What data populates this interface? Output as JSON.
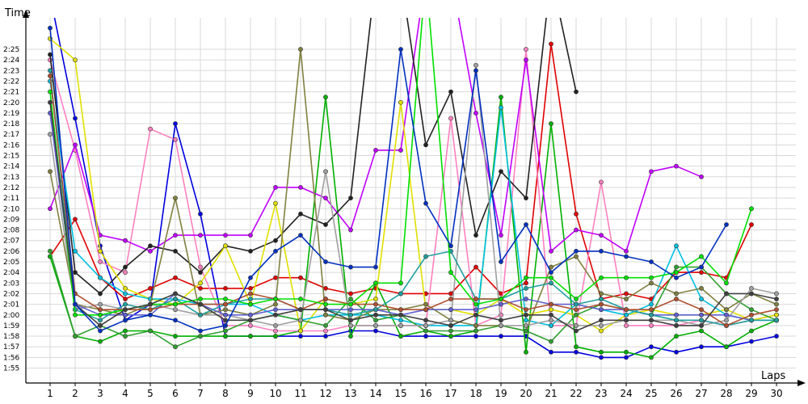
{
  "chart_data": {
    "type": "line",
    "title": "",
    "xlabel": "Laps",
    "ylabel": "Time",
    "xlim": [
      1,
      30
    ],
    "ylim": [
      114,
      146.5
    ],
    "grid": "horizontal and vertical",
    "yticks": [
      "1:55",
      "1:56",
      "1:57",
      "1:58",
      "1:59",
      "2:00",
      "2:01",
      "2:02",
      "2:03",
      "2:04",
      "2:05",
      "2:06",
      "2:07",
      "2:08",
      "2:09",
      "2:10",
      "2:11",
      "2:12",
      "2:13",
      "2:14",
      "2:15",
      "2:16",
      "2:17",
      "2:18",
      "2:19",
      "2:20",
      "2:21",
      "2:22",
      "2:23",
      "2:24",
      "2:25"
    ],
    "yticks_seconds": [
      115,
      116,
      117,
      118,
      119,
      120,
      121,
      122,
      123,
      124,
      125,
      126,
      127,
      128,
      129,
      130,
      131,
      132,
      133,
      134,
      135,
      136,
      137,
      138,
      139,
      140,
      141,
      142,
      143,
      144,
      145
    ],
    "xticks": [
      "1",
      "2",
      "3",
      "4",
      "5",
      "6",
      "7",
      "8",
      "9",
      "10",
      "11",
      "12",
      "13",
      "14",
      "15",
      "16",
      "17",
      "18",
      "19",
      "20",
      "21",
      "22",
      "23",
      "24",
      "25",
      "26",
      "27",
      "28",
      "29",
      "30"
    ],
    "series": [
      {
        "color": "#0000e0",
        "values": [
          150,
          138.5,
          126.5,
          119.5,
          121,
          138,
          129.5,
          118,
          118,
          118,
          118,
          118,
          118.5,
          118.5,
          118,
          118,
          118,
          118,
          118,
          118,
          116.5,
          116.5,
          116,
          116,
          117,
          116.5,
          117,
          117,
          117.5,
          118
        ]
      },
      {
        "color": "#e00000",
        "values": [
          125.5,
          129,
          123.5,
          121.5,
          122.5,
          123.5,
          122.5,
          122.5,
          122.5,
          123.5,
          123.5,
          122.5,
          122,
          122.5,
          122,
          122,
          122,
          124.5,
          122,
          123,
          145.5,
          129.5,
          121.5,
          122,
          121.5,
          124,
          124,
          123.5,
          128.5,
          null
        ]
      },
      {
        "color": "#00b000",
        "values": [
          125.5,
          118,
          117.5,
          118.5,
          118.5,
          118,
          118,
          118,
          118,
          118,
          118.5,
          140.5,
          118,
          123,
          118,
          118.5,
          118,
          118.5,
          140.5,
          116.5,
          138,
          117,
          116.5,
          116.5,
          116,
          118,
          118.5,
          117,
          118.5,
          119.5
        ]
      },
      {
        "color": "#ff80c0",
        "values": [
          144,
          135.5,
          125,
          124,
          137.5,
          136.5,
          124.5,
          119,
          119,
          118.5,
          118.5,
          118.5,
          119,
          119,
          119,
          119,
          138.5,
          119,
          120,
          145,
          119,
          119,
          132.5,
          119,
          119,
          119,
          119.5,
          119,
          119.5,
          120
        ]
      },
      {
        "color": "#c000ff",
        "values": [
          130,
          136,
          127.5,
          127,
          126,
          127.5,
          127.5,
          127.5,
          127.5,
          132,
          132,
          131,
          128,
          135.5,
          135.5,
          152,
          152,
          139,
          127.5,
          144,
          126,
          128,
          127.5,
          126,
          133.5,
          134,
          133,
          null,
          null,
          null
        ]
      },
      {
        "color": "#222222",
        "values": [
          144.5,
          124,
          122,
          124.5,
          126.5,
          126,
          124,
          126.5,
          126,
          127,
          129.5,
          128.5,
          131,
          152,
          152,
          136,
          141,
          127.5,
          133.5,
          131,
          152,
          141,
          null,
          null,
          null,
          null,
          null,
          null,
          null,
          null
        ]
      },
      {
        "color": "#e0e000",
        "values": [
          146,
          144,
          126,
          122.5,
          121.5,
          121,
          123,
          126.5,
          121,
          130.5,
          118.5,
          121.5,
          121,
          121.5,
          140,
          120.5,
          120.5,
          120,
          121.5,
          120,
          120.5,
          120,
          118.5,
          120,
          120.5,
          120,
          120,
          120.5,
          119.5,
          120
        ]
      },
      {
        "color": "#00c0e0",
        "values": [
          142,
          126,
          123.5,
          122,
          121.5,
          121.5,
          121,
          121,
          121,
          120,
          119.5,
          120,
          120,
          120,
          119.5,
          119,
          119,
          119,
          139.5,
          119.5,
          119,
          121,
          120.5,
          120,
          121,
          126.5,
          121.5,
          120,
          119.5,
          119.5
        ]
      },
      {
        "color": "#808040",
        "values": [
          133.5,
          121,
          120.5,
          120,
          121,
          131,
          120,
          120.5,
          120,
          121,
          145,
          120,
          119.5,
          120.5,
          120.5,
          121,
          119.5,
          119,
          119,
          118.5,
          124.5,
          125.5,
          122,
          121.5,
          123,
          122,
          122.5,
          120.5,
          122,
          121
        ]
      },
      {
        "color": "#30a030",
        "values": [
          126,
          118,
          119,
          118,
          118.5,
          117,
          118,
          118.5,
          119.5,
          120,
          119.5,
          119,
          121.5,
          119.5,
          120,
          118.5,
          118.5,
          118.5,
          119,
          118.5,
          117.5,
          120,
          121,
          120.5,
          120,
          124.5,
          124.5,
          122,
          120.5,
          119.5
        ]
      },
      {
        "color": "#a0a0a0",
        "values": [
          137,
          120.5,
          121,
          120.5,
          121,
          120.5,
          120,
          120,
          119.5,
          119,
          119.5,
          133.5,
          119,
          119,
          119,
          119,
          119.5,
          143.5,
          119,
          119,
          119.5,
          119,
          119,
          119.5,
          119.5,
          119.5,
          119,
          119.5,
          122.5,
          122
        ]
      },
      {
        "color": "#6060d0",
        "values": [
          139,
          121,
          120,
          120,
          120,
          122,
          121,
          120,
          120,
          120.5,
          120.5,
          120.5,
          120.5,
          120.5,
          120,
          120.5,
          120.5,
          120.5,
          121,
          121.5,
          121,
          121,
          120.5,
          120.5,
          120,
          120,
          120,
          120,
          119.5,
          119.5
        ]
      },
      {
        "color": "#20a0a0",
        "values": [
          143,
          120.5,
          119.5,
          121,
          120.5,
          121.5,
          120,
          121,
          121.5,
          121.5,
          120.5,
          120.5,
          120,
          120.5,
          122,
          125.5,
          126,
          121.5,
          121.5,
          122.5,
          123,
          121,
          121.5,
          120.5,
          120,
          119.5,
          119.5,
          119,
          119.5,
          119.5
        ]
      },
      {
        "color": "#b05030",
        "values": [
          142.5,
          122,
          120.5,
          120.5,
          120.5,
          121,
          121,
          121,
          122,
          121.5,
          120.5,
          121.5,
          121,
          121,
          120.5,
          120.5,
          121.5,
          121.5,
          121.5,
          120.5,
          121,
          120.5,
          121,
          120.5,
          120.5,
          121.5,
          120.5,
          119,
          120,
          120.5
        ]
      },
      {
        "color": "#00e000",
        "values": [
          141,
          120,
          120,
          120.5,
          121,
          121,
          121.5,
          121.5,
          121,
          121.5,
          121.5,
          121,
          121,
          123,
          123,
          152,
          124,
          121,
          121.5,
          123.5,
          123.5,
          121.5,
          123.5,
          123.5,
          123.5,
          124,
          125.5,
          123,
          130,
          null
        ]
      },
      {
        "color": "#404040",
        "values": [
          140,
          121,
          119,
          120.5,
          121,
          122,
          121,
          119.5,
          119.5,
          120,
          120.5,
          120.5,
          119.5,
          120,
          120,
          119.5,
          119,
          120,
          119.5,
          120,
          120,
          118.5,
          119.5,
          119.5,
          119.5,
          119,
          119,
          122,
          122,
          121.5
        ]
      },
      {
        "color": "#0030c0",
        "values": [
          147,
          121,
          118.5,
          119.5,
          120,
          119.5,
          118.5,
          119,
          123.5,
          126,
          127.5,
          125,
          124.5,
          124.5,
          145,
          130.5,
          126.5,
          143,
          125,
          128.5,
          124,
          126,
          126,
          125.5,
          125,
          123.5,
          124.5,
          128.5,
          null,
          null
        ]
      }
    ]
  }
}
